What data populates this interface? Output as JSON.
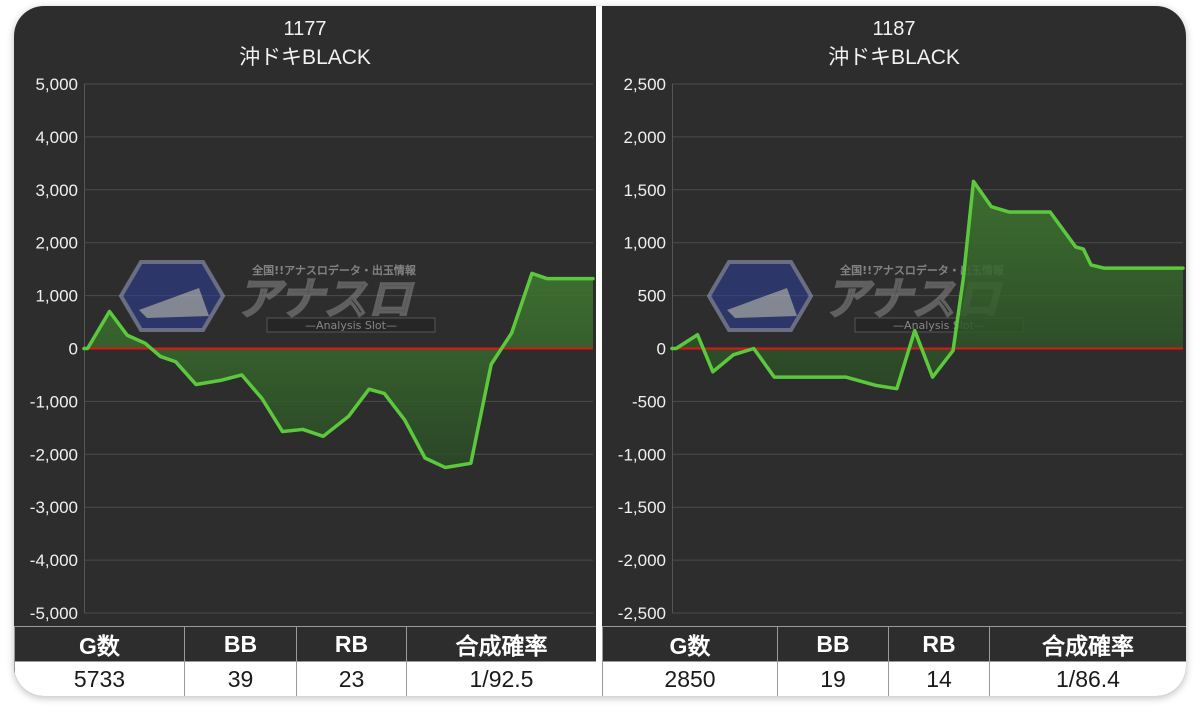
{
  "chart_data": [
    {
      "type": "line",
      "title": "1177",
      "subtitle": "沖ドキBLACK",
      "ylim": [
        -5000,
        5000
      ],
      "ytick_values": [
        5000,
        4000,
        3000,
        2000,
        1000,
        0,
        -1000,
        -2000,
        -3000,
        -4000,
        -5000
      ],
      "yticks": [
        "5,000",
        "4,000",
        "3,000",
        "2,000",
        "1,000",
        "0",
        "-1,000",
        "-2,000",
        "-3,000",
        "-4,000",
        "-5,000"
      ],
      "grid": true,
      "zero_line_color": "#e01515",
      "line_color": "#5cc93d",
      "x": [
        0,
        0.7,
        5,
        8.5,
        12,
        15,
        18,
        22,
        27,
        31,
        35,
        39,
        43,
        47,
        52,
        56,
        59,
        63,
        67,
        71,
        76,
        80,
        84,
        88,
        91,
        92.5,
        100
      ],
      "y": [
        0,
        0,
        700,
        250,
        100,
        -150,
        -250,
        -680,
        -600,
        -500,
        -950,
        -1570,
        -1530,
        -1660,
        -1280,
        -770,
        -850,
        -1350,
        -2070,
        -2250,
        -2170,
        -300,
        290,
        1420,
        1320,
        1320,
        1320
      ]
    },
    {
      "type": "line",
      "title": "1187",
      "subtitle": "沖ドキBLACK",
      "ylim": [
        -2500,
        2500
      ],
      "ytick_values": [
        2500,
        2000,
        1500,
        1000,
        500,
        0,
        -500,
        -1000,
        -1500,
        -2000,
        -2500
      ],
      "yticks": [
        "2,500",
        "2,000",
        "1,500",
        "1,000",
        "500",
        "0",
        "-500",
        "-1,000",
        "-1,500",
        "-2,000",
        "-2,500"
      ],
      "grid": true,
      "zero_line_color": "#e01515",
      "line_color": "#5cc93d",
      "x": [
        0,
        0.8,
        5,
        8,
        12,
        16,
        20,
        34,
        40,
        44,
        47.5,
        51,
        55,
        57,
        59,
        62.5,
        66,
        70,
        74,
        79,
        80.5,
        82,
        84.5,
        88,
        91,
        100
      ],
      "y": [
        0,
        0,
        130,
        -220,
        -60,
        0,
        -270,
        -270,
        -350,
        -380,
        170,
        -270,
        -20,
        660,
        1580,
        1340,
        1290,
        1290,
        1290,
        960,
        940,
        790,
        760,
        760,
        760,
        760
      ]
    }
  ],
  "panels": [
    {
      "title": "1177",
      "subtitle": "沖ドキBLACK",
      "stats": {
        "headers": [
          "G数",
          "BB",
          "RB",
          "合成確率"
        ],
        "values": [
          "5733",
          "39",
          "23",
          "1/92.5"
        ]
      }
    },
    {
      "title": "1187",
      "subtitle": "沖ドキBLACK",
      "stats": {
        "headers": [
          "G数",
          "BB",
          "RB",
          "合成確率"
        ],
        "values": [
          "2850",
          "19",
          "14",
          "1/86.4"
        ]
      }
    }
  ],
  "watermark": {
    "tagline": "全国!!アナスロデータ・出玉情報",
    "logo_text": "アナスロ",
    "sub": "—Analysis Slot—"
  }
}
